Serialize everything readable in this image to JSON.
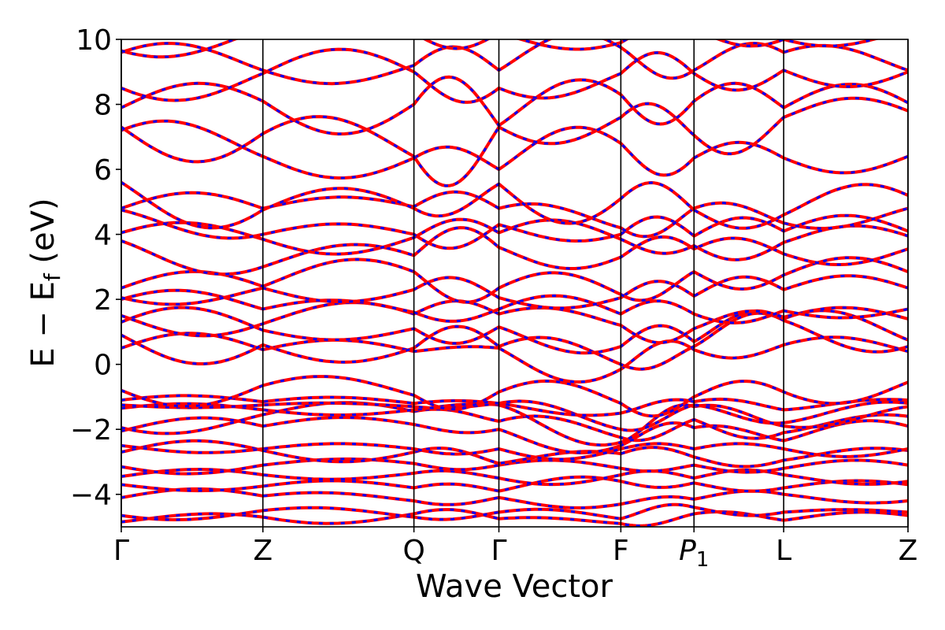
{
  "chart_data": {
    "type": "line",
    "title": "",
    "xlabel": "Wave Vector",
    "ylabel": "E − E_f (eV)",
    "ylabel_parts": {
      "main": "E − E",
      "sub": "f",
      "unit": " (eV)"
    },
    "ylim": [
      -5,
      10
    ],
    "yticks": [
      -4,
      -2,
      0,
      2,
      4,
      6,
      8,
      10
    ],
    "ytick_labels": [
      "−4",
      "−2",
      "0",
      "2",
      "4",
      "6",
      "8",
      "10"
    ],
    "x_range": [
      0,
      1
    ],
    "kpoints": [
      {
        "label": "Γ",
        "x": 0.0
      },
      {
        "label": "Z",
        "x": 0.18
      },
      {
        "label": "Q",
        "x": 0.372
      },
      {
        "label": "Γ",
        "x": 0.48
      },
      {
        "label": "F",
        "x": 0.635
      },
      {
        "label": "P",
        "sub": "1",
        "x": 0.728
      },
      {
        "label": "L",
        "x": 0.842
      },
      {
        "label": "Z",
        "x": 1.0
      }
    ],
    "grid": false,
    "legend": "none",
    "series_styles": [
      {
        "color": "#ff0000",
        "style": "solid"
      },
      {
        "color": "#0000ff",
        "style": "dashed"
      }
    ],
    "band_energies_at_kpoints": [
      [
        -4.85,
        -4.7,
        -4.6,
        -4.75,
        -4.9,
        -4.6,
        -4.8,
        -4.65
      ],
      [
        -4.65,
        -4.5,
        -4.7,
        -4.55,
        -4.75,
        -4.4,
        -4.55,
        -4.55
      ],
      [
        -4.1,
        -4.05,
        -4.2,
        -4.1,
        -4.3,
        -4.15,
        -4.0,
        -4.2
      ],
      [
        -3.7,
        -3.75,
        -3.8,
        -3.9,
        -3.6,
        -3.65,
        -3.8,
        -3.7
      ],
      [
        -3.45,
        -3.4,
        -3.35,
        -3.5,
        -3.4,
        -3.5,
        -3.4,
        -3.6
      ],
      [
        -3.15,
        -3.1,
        -3.05,
        -3.1,
        -3.2,
        -3.1,
        -3.2,
        -3.1
      ],
      [
        -2.7,
        -2.65,
        -2.7,
        -3.05,
        -2.75,
        -2.85,
        -2.95,
        -2.65
      ],
      [
        -2.5,
        -2.6,
        -2.6,
        -2.6,
        -2.6,
        -2.6,
        -2.6,
        -2.6
      ],
      [
        -2.05,
        -1.9,
        -1.85,
        -2.0,
        -2.5,
        -1.95,
        -2.35,
        -1.9
      ],
      [
        -1.95,
        -1.55,
        -1.45,
        -1.75,
        -2.25,
        -1.7,
        -2.1,
        -1.6
      ],
      [
        -1.35,
        -1.4,
        -1.4,
        -1.25,
        -2.4,
        -1.3,
        -1.9,
        -1.3
      ],
      [
        -1.25,
        -1.25,
        -1.3,
        -1.2,
        -2.0,
        -1.25,
        -1.8,
        -1.2
      ],
      [
        -1.1,
        -1.15,
        -1.2,
        -1.2,
        -1.5,
        -1.15,
        -1.4,
        -1.1
      ],
      [
        -0.8,
        -0.65,
        -0.95,
        -0.85,
        -1.2,
        -1.0,
        -0.85,
        -0.55
      ],
      [
        0.5,
        0.45,
        0.4,
        0.5,
        -0.15,
        0.45,
        0.6,
        0.4
      ],
      [
        0.9,
        0.6,
        0.5,
        0.55,
        0.0,
        0.55,
        1.35,
        0.55
      ],
      [
        1.3,
        1.05,
        1.1,
        1.15,
        0.55,
        0.7,
        1.4,
        0.75
      ],
      [
        1.5,
        1.25,
        1.55,
        1.55,
        1.2,
        1.1,
        1.45,
        1.4
      ],
      [
        2.0,
        1.7,
        1.6,
        1.7,
        1.55,
        1.55,
        1.65,
        1.7
      ],
      [
        2.05,
        2.35,
        2.3,
        2.05,
        2.05,
        2.1,
        2.3,
        2.35
      ],
      [
        2.35,
        2.4,
        2.85,
        2.35,
        2.15,
        2.85,
        2.75,
        2.85
      ],
      [
        3.8,
        3.0,
        3.35,
        3.6,
        3.3,
        3.55,
        3.4,
        3.55
      ],
      [
        4.05,
        3.85,
        3.9,
        4.05,
        3.85,
        3.65,
        3.75,
        3.95
      ],
      [
        4.75,
        4.0,
        4.0,
        4.3,
        4.0,
        3.95,
        4.1,
        4.1
      ],
      [
        4.8,
        4.8,
        4.85,
        4.8,
        4.2,
        4.8,
        4.35,
        4.8
      ],
      [
        5.6,
        4.75,
        4.8,
        5.55,
        5.1,
        4.75,
        4.6,
        5.2
      ],
      [
        7.2,
        6.4,
        6.35,
        6.0,
        6.8,
        6.35,
        6.35,
        6.4
      ],
      [
        7.3,
        7.1,
        6.4,
        7.3,
        7.6,
        7.05,
        7.6,
        7.8
      ],
      [
        7.9,
        8.1,
        8.0,
        7.35,
        8.3,
        8.1,
        7.9,
        8.05
      ],
      [
        8.5,
        8.95,
        9.0,
        8.5,
        8.95,
        8.95,
        9.05,
        9.0
      ],
      [
        9.6,
        9.05,
        9.2,
        9.05,
        9.75,
        9.05,
        9.6,
        9.05
      ],
      [
        9.65,
        10.3,
        10.2,
        10.2,
        9.9,
        10.3,
        10.0,
        10.3
      ]
    ],
    "band_wiggles": [
      [
        0.1,
        -0.15,
        0.12,
        0.05,
        -0.1,
        0.08,
        0.1
      ],
      [
        -0.12,
        0.1,
        -0.08,
        0.1,
        0.12,
        -0.1,
        0.05
      ],
      [
        0.15,
        0.1,
        -0.1,
        -0.12,
        0.08,
        0.1,
        -0.08
      ],
      [
        -0.1,
        0.12,
        0.1,
        0.15,
        -0.1,
        -0.1,
        0.1
      ],
      [
        0.12,
        -0.1,
        0.08,
        -0.15,
        0.1,
        0.12,
        -0.1
      ],
      [
        -0.15,
        0.1,
        -0.1,
        0.12,
        -0.08,
        -0.1,
        0.12
      ],
      [
        0.2,
        -0.2,
        0.15,
        0.1,
        0.15,
        -0.15,
        0.1
      ],
      [
        -0.1,
        0.1,
        -0.1,
        -0.2,
        0.1,
        0.1,
        -0.15
      ],
      [
        0.2,
        0.15,
        -0.1,
        -0.25,
        0.2,
        0.1,
        0.2
      ],
      [
        -0.2,
        0.2,
        0.1,
        0.2,
        -0.15,
        -0.2,
        0.1
      ],
      [
        0.1,
        -0.1,
        0.05,
        -0.2,
        0.15,
        0.1,
        -0.1
      ],
      [
        -0.05,
        0.05,
        -0.05,
        0.15,
        -0.1,
        -0.05,
        0.1
      ],
      [
        0.1,
        0.1,
        0.05,
        -0.1,
        0.1,
        0.1,
        0.05
      ],
      [
        -0.35,
        0.25,
        -0.3,
        0.3,
        -0.3,
        0.25,
        -0.3
      ],
      [
        0.3,
        0.2,
        0.05,
        -0.4,
        0.3,
        -0.2,
        0.2
      ],
      [
        -0.45,
        -0.3,
        0.4,
        0.3,
        -0.2,
        0.3,
        -0.25
      ],
      [
        0.35,
        -0.2,
        -0.3,
        -0.25,
        0.35,
        0.3,
        0.3
      ],
      [
        -0.3,
        0.3,
        0.25,
        0.2,
        -0.3,
        0.2,
        0.2
      ],
      [
        0.25,
        0.2,
        -0.2,
        0.3,
        0.25,
        -0.2,
        -0.15
      ],
      [
        -0.2,
        -0.25,
        0.3,
        -0.2,
        0.3,
        0.3,
        0.25
      ],
      [
        0.3,
        0.35,
        -0.4,
        0.35,
        -0.25,
        -0.3,
        0.3
      ],
      [
        -0.3,
        0.3,
        0.45,
        -0.3,
        0.3,
        0.25,
        -0.25
      ],
      [
        0.25,
        -0.3,
        0.3,
        0.3,
        -0.2,
        -0.3,
        0.25
      ],
      [
        -0.2,
        0.2,
        -0.35,
        -0.2,
        0.35,
        0.3,
        0.3
      ],
      [
        0.3,
        0.2,
        0.3,
        0.2,
        -0.3,
        0.2,
        -0.2
      ],
      [
        -0.55,
        0.4,
        -0.3,
        -0.6,
        0.4,
        -0.3,
        0.35
      ],
      [
        0.35,
        -0.4,
        0.3,
        0.5,
        -0.45,
        0.3,
        -0.3
      ],
      [
        -0.6,
        0.5,
        -0.8,
        -0.4,
        0.4,
        -0.5,
        0.3
      ],
      [
        0.4,
        -0.6,
        0.7,
        0.5,
        -0.5,
        0.4,
        0.4
      ],
      [
        -0.35,
        0.45,
        -0.4,
        -0.3,
        0.4,
        -0.35,
        -0.3
      ],
      [
        0.3,
        -0.3,
        0.4,
        0.45,
        -0.3,
        0.3,
        0.25
      ],
      [
        -0.25,
        0.2,
        -0.3,
        -0.2,
        0.25,
        -0.2,
        -0.2
      ]
    ]
  }
}
